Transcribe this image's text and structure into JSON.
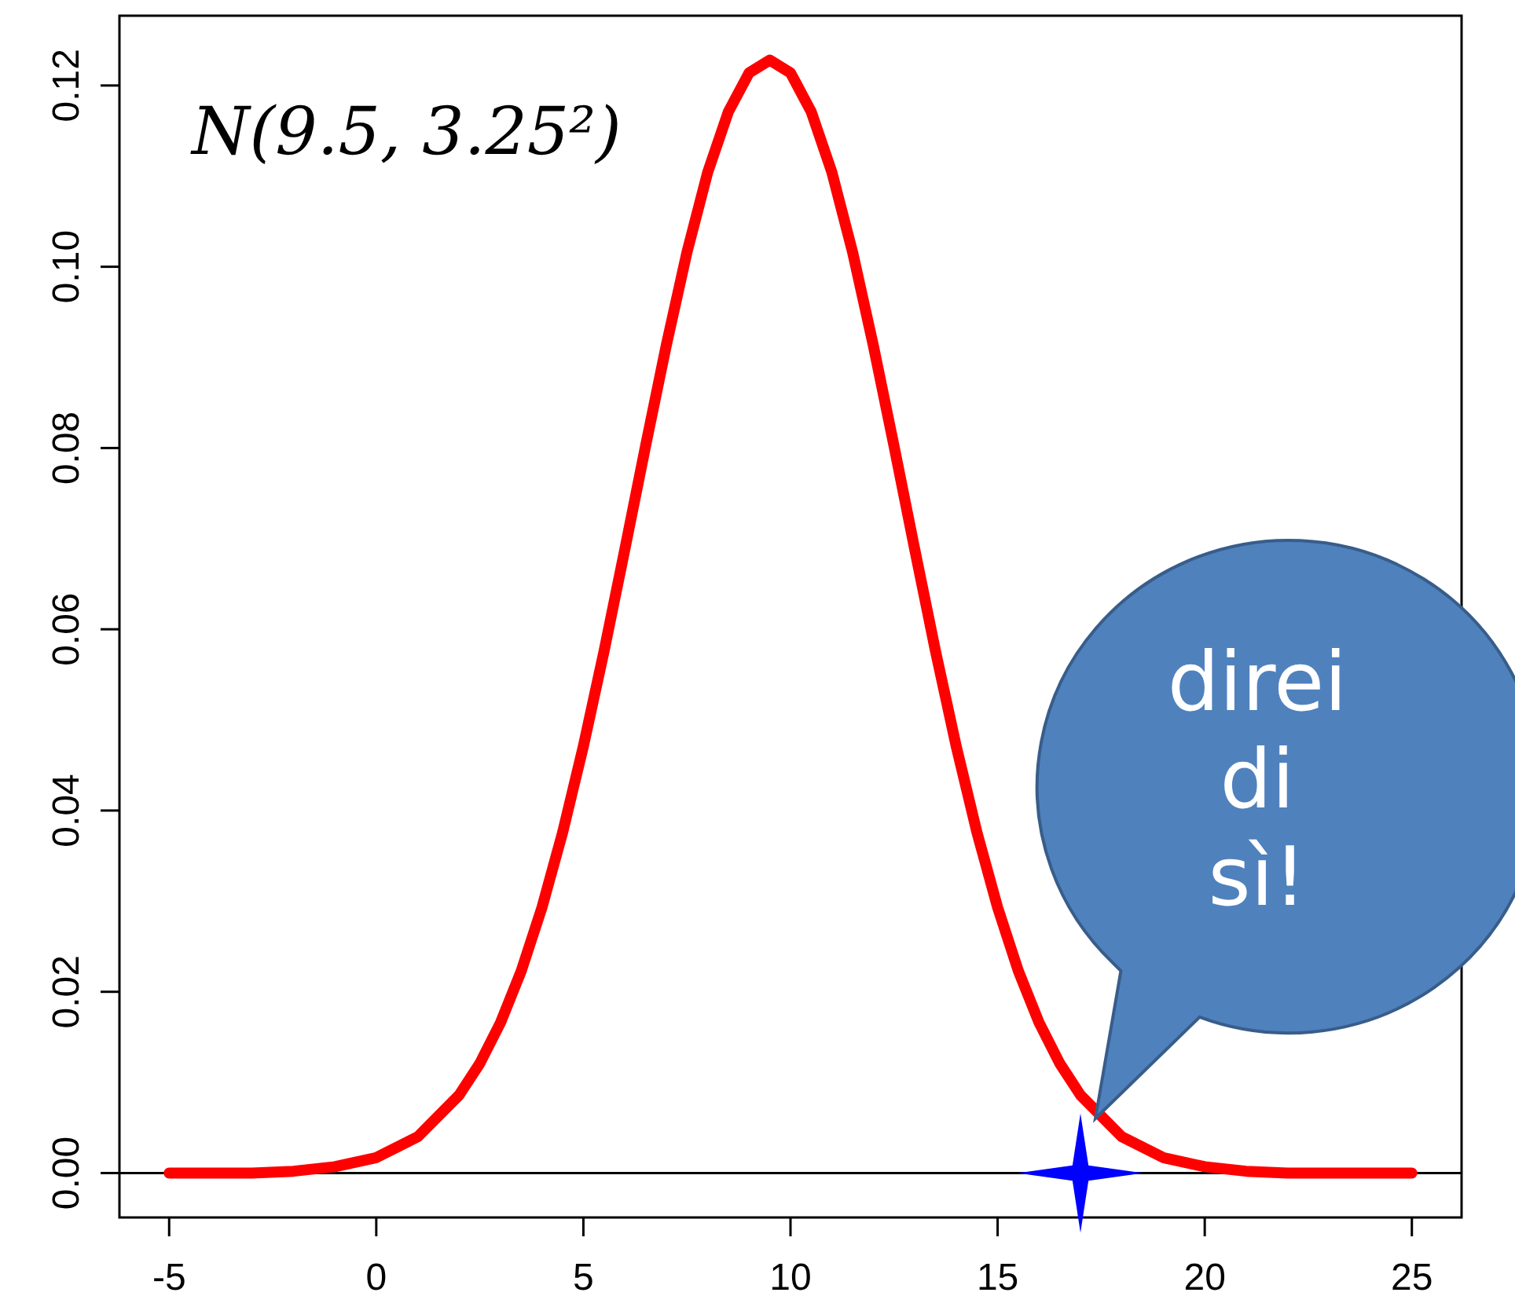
{
  "chart_data": {
    "type": "line",
    "x": [
      -5,
      -4,
      -3,
      -2,
      -1,
      0,
      1,
      2,
      2.5,
      3,
      3.5,
      4,
      4.5,
      5,
      5.5,
      6,
      6.5,
      7,
      7.5,
      8,
      8.5,
      9,
      9.5,
      10,
      10.5,
      11,
      11.5,
      12,
      12.5,
      13,
      13.5,
      14,
      14.5,
      15,
      15.5,
      16,
      16.5,
      17,
      18,
      19,
      20,
      21,
      22,
      23,
      24,
      25
    ],
    "series": [
      {
        "color": "#ff0000",
        "values": [
          0,
          0,
          0,
          0.0002,
          0.0007,
          0.0017,
          0.004,
          0.0086,
          0.0121,
          0.0166,
          0.0223,
          0.0293,
          0.0376,
          0.0471,
          0.0576,
          0.0688,
          0.0802,
          0.0913,
          0.1016,
          0.1104,
          0.1171,
          0.1214,
          0.1228,
          0.1214,
          0.1171,
          0.1104,
          0.1016,
          0.0913,
          0.0802,
          0.0688,
          0.0576,
          0.0471,
          0.0376,
          0.0293,
          0.0223,
          0.0166,
          0.0121,
          0.0086,
          0.004,
          0.0017,
          0.0007,
          0.0002,
          0,
          0,
          0,
          0
        ]
      },
      {
        "type": "scatter",
        "x": [
          17
        ],
        "values": [
          0
        ],
        "color": "#0000ff",
        "marker": "star"
      }
    ],
    "xlim": [
      -6.2,
      26.2
    ],
    "xticks": [
      -5,
      0,
      5,
      10,
      15,
      20,
      25
    ],
    "ylim": [
      -0.0049,
      0.1277
    ],
    "yticks": [
      {
        "value": 0,
        "label": "0.00"
      },
      0.02,
      0.04,
      0.06,
      0.08,
      {
        "value": 0.1,
        "label": "0.10"
      },
      0.12
    ],
    "ref_lines": [
      {
        "axis": "y",
        "value": 0,
        "color": "#000000"
      }
    ],
    "annotations": [
      "N(9.5, 3.25²)",
      "direi di sì!"
    ],
    "line_style": "solid",
    "marker": "none",
    "grid": false
  }
}
